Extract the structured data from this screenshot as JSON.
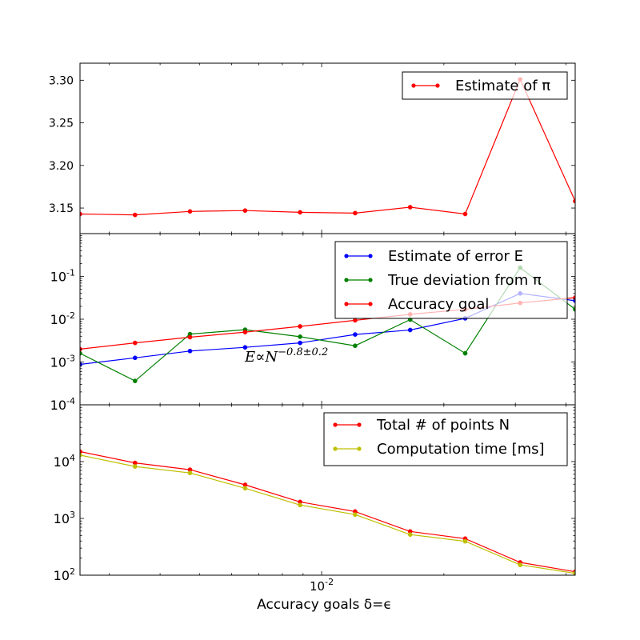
{
  "chart_data": [
    {
      "type": "line",
      "x_scale": "log",
      "y_scale": "linear",
      "x": [
        0.00254,
        0.00347,
        0.00474,
        0.00648,
        0.00885,
        0.01209,
        0.01652,
        0.02257,
        0.03083,
        0.04212
      ],
      "ylim": [
        3.12,
        3.32
      ],
      "yticks": [
        "3.15",
        "3.20",
        "3.25",
        "3.30"
      ],
      "series": [
        {
          "name": "Estimate of π",
          "color": "#ff0000",
          "values": [
            3.143,
            3.142,
            3.146,
            3.147,
            3.145,
            3.144,
            3.151,
            3.143,
            3.301,
            3.158
          ]
        }
      ],
      "legend_position": "upper-right"
    },
    {
      "type": "line",
      "x_scale": "log",
      "y_scale": "log",
      "x": [
        0.00254,
        0.00347,
        0.00474,
        0.00648,
        0.00885,
        0.01209,
        0.01652,
        0.02257,
        0.03083,
        0.04212
      ],
      "ylim": [
        0.0001,
        1
      ],
      "yticks": [
        {
          "base": "10",
          "exp": "-1",
          "value": 0.1
        },
        {
          "base": "10",
          "exp": "-2",
          "value": 0.01
        },
        {
          "base": "10",
          "exp": "-3",
          "value": 0.001
        },
        {
          "base": "10",
          "exp": "-4",
          "value": 0.0001
        }
      ],
      "series": [
        {
          "name": "Estimate of error E",
          "color": "#0000ff",
          "values": [
            0.00088,
            0.00125,
            0.0018,
            0.0022,
            0.0028,
            0.0044,
            0.0056,
            0.0105,
            0.04,
            0.027
          ]
        },
        {
          "name": "True deviation from π",
          "color": "#008000",
          "values": [
            0.0016,
            0.00036,
            0.0045,
            0.0057,
            0.0039,
            0.0024,
            0.0098,
            0.0016,
            0.16,
            0.017
          ]
        },
        {
          "name": "Accuracy goal",
          "color": "#ff0000",
          "values": [
            0.002,
            0.0028,
            0.0038,
            0.005,
            0.0068,
            0.0094,
            0.013,
            0.017,
            0.024,
            0.032
          ]
        }
      ],
      "legend_position": "upper-right",
      "annotation": {
        "base": "E∝N",
        "exponent": "−0.8±0.2"
      }
    },
    {
      "type": "line",
      "x_scale": "log",
      "y_scale": "log",
      "x": [
        0.00254,
        0.00347,
        0.00474,
        0.00648,
        0.00885,
        0.01209,
        0.01652,
        0.02257,
        0.03083,
        0.04212
      ],
      "ylim": [
        100,
        100000
      ],
      "yticks": [
        {
          "base": "10",
          "exp": "4",
          "value": 10000
        },
        {
          "base": "10",
          "exp": "3",
          "value": 1000
        },
        {
          "base": "10",
          "exp": "2",
          "value": 100
        }
      ],
      "series": [
        {
          "name": "Total # of points N",
          "color": "#ff0000",
          "values": [
            15000,
            9500,
            7200,
            3900,
            1950,
            1320,
            590,
            440,
            168,
            115
          ]
        },
        {
          "name": "Computation time [ms]",
          "color": "#bfbf00",
          "values": [
            13000,
            8200,
            6300,
            3400,
            1720,
            1170,
            520,
            395,
            152,
            108
          ]
        }
      ],
      "legend_position": "upper-right"
    }
  ],
  "shared_x": {
    "label": "Accuracy goals δ=ϵ",
    "xlim": [
      0.00254,
      0.04212
    ],
    "xticks": [
      {
        "base": "10",
        "exp": "-2",
        "value": 0.01
      }
    ]
  }
}
